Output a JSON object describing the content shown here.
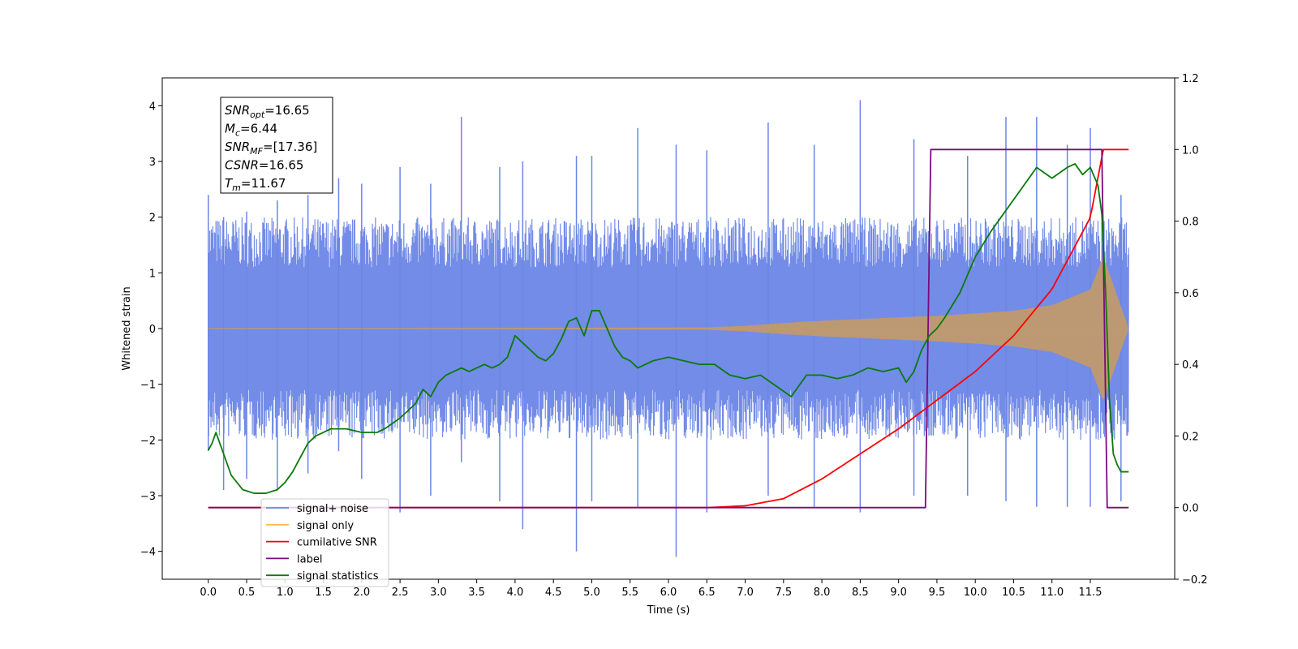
{
  "chart_data": {
    "type": "line",
    "xlabel": "Time (s)",
    "ylabel": "Whitened strain",
    "xlim": [
      -0.6,
      12.6
    ],
    "ylim": [
      -4.5,
      4.5
    ],
    "y2lim": [
      -0.2,
      1.2
    ],
    "x_ticks": [
      0.0,
      0.5,
      1.0,
      1.5,
      2.0,
      2.5,
      3.0,
      3.5,
      4.0,
      4.5,
      5.0,
      5.5,
      6.0,
      6.5,
      7.0,
      7.5,
      8.0,
      8.5,
      9.0,
      9.5,
      10.0,
      10.5,
      11.0,
      11.5
    ],
    "x_tick_labels": [
      "0.0",
      "0.5",
      "1.0",
      "1.5",
      "2.0",
      "2.5",
      "3.0",
      "3.5",
      "4.0",
      "4.5",
      "5.0",
      "5.5",
      "6.0",
      "6.5",
      "7.0",
      "7.5",
      "8.0",
      "8.5",
      "9.0",
      "9.5",
      "10.0",
      "10.5",
      "11.0",
      "11.5"
    ],
    "y_ticks": [
      -4,
      -3,
      -2,
      -1,
      0,
      1,
      2,
      3,
      4
    ],
    "y_tick_labels": [
      "−4",
      "−3",
      "−2",
      "−1",
      "0",
      "1",
      "2",
      "3",
      "4"
    ],
    "y2_ticks": [
      -0.2,
      0.0,
      0.2,
      0.4,
      0.6,
      0.8,
      1.0,
      1.2
    ],
    "y2_tick_labels": [
      "−0.2",
      "0.0",
      "0.2",
      "0.4",
      "0.6",
      "0.8",
      "1.0",
      "1.2"
    ],
    "legend_position": "lower-left",
    "grid": false,
    "colors": {
      "noise": "#6b86e6",
      "signal": "#c09a6b",
      "signal_legend": "#ffbd4d",
      "csnr": "#ff0000",
      "label": "#7b0a80",
      "stats": "#0a7a0a"
    },
    "annotation": [
      {
        "base": "SNR",
        "sub": "opt",
        "value": "=16.65"
      },
      {
        "base": "M",
        "sub": "c",
        "value": "=6.44"
      },
      {
        "base": "SNR",
        "sub": "MF",
        "value": "=[17.36]"
      },
      {
        "base": "CSNR",
        "sub": "",
        "value": "=16.65"
      },
      {
        "base": "T",
        "sub": "m",
        "value": "=11.67"
      }
    ],
    "series": [
      {
        "name": "signal+ noise",
        "axis": "left",
        "style": "noise-band",
        "x": [
          0.0,
          12.0
        ],
        "envelope": 2.0,
        "peaks": [
          [
            0.0,
            2.4,
            -2.2
          ],
          [
            0.2,
            2.0,
            -2.9
          ],
          [
            0.5,
            2.1,
            -2.7
          ],
          [
            0.9,
            2.3,
            -2.9
          ],
          [
            1.3,
            2.4,
            -2.6
          ],
          [
            1.7,
            2.7,
            -2.2
          ],
          [
            2.0,
            2.6,
            -2.7
          ],
          [
            2.5,
            2.9,
            -3.3
          ],
          [
            2.9,
            2.6,
            -3.0
          ],
          [
            3.3,
            3.8,
            -2.4
          ],
          [
            3.8,
            2.9,
            -3.1
          ],
          [
            4.1,
            3.0,
            -3.6
          ],
          [
            4.8,
            3.1,
            -4.0
          ],
          [
            5.0,
            3.1,
            -3.1
          ],
          [
            5.6,
            3.6,
            -3.2
          ],
          [
            6.1,
            3.3,
            -4.1
          ],
          [
            6.5,
            3.2,
            -3.3
          ],
          [
            7.3,
            3.7,
            -3.0
          ],
          [
            7.9,
            3.3,
            -3.2
          ],
          [
            8.5,
            4.1,
            -3.3
          ],
          [
            9.2,
            3.4,
            -3.0
          ],
          [
            9.9,
            3.1,
            -3.0
          ],
          [
            10.4,
            3.8,
            -3.1
          ],
          [
            10.8,
            3.8,
            -3.2
          ],
          [
            11.2,
            3.3,
            -3.2
          ],
          [
            11.5,
            3.6,
            -3.2
          ],
          [
            11.9,
            2.4,
            -3.1
          ]
        ]
      },
      {
        "name": "signal only",
        "axis": "left",
        "style": "chirp",
        "x": [
          0.0,
          6.5,
          7.0,
          7.5,
          8.0,
          8.5,
          9.0,
          9.5,
          10.0,
          10.5,
          11.0,
          11.5,
          11.67,
          12.0
        ],
        "amplitude": [
          0.0,
          0.02,
          0.05,
          0.1,
          0.14,
          0.17,
          0.2,
          0.23,
          0.27,
          0.32,
          0.42,
          0.7,
          1.3,
          0.0
        ]
      },
      {
        "name": "cumilative SNR",
        "axis": "right",
        "x": [
          0.0,
          6.5,
          7.0,
          7.5,
          8.0,
          8.5,
          9.0,
          9.5,
          10.0,
          10.5,
          11.0,
          11.5,
          11.67,
          12.0
        ],
        "values": [
          0.0,
          0.0,
          0.005,
          0.025,
          0.08,
          0.15,
          0.22,
          0.3,
          0.38,
          0.48,
          0.61,
          0.81,
          1.0,
          1.0
        ]
      },
      {
        "name": "label",
        "axis": "right",
        "x": [
          0.0,
          9.35,
          9.42,
          11.65,
          11.72,
          12.0
        ],
        "values": [
          0.0,
          0.0,
          1.0,
          1.0,
          0.0,
          0.0
        ]
      },
      {
        "name": "signal statistics",
        "axis": "right",
        "x": [
          0.0,
          0.05,
          0.1,
          0.2,
          0.3,
          0.45,
          0.6,
          0.75,
          0.9,
          1.0,
          1.1,
          1.2,
          1.3,
          1.4,
          1.5,
          1.6,
          1.8,
          2.0,
          2.2,
          2.3,
          2.5,
          2.7,
          2.8,
          2.9,
          3.0,
          3.1,
          3.2,
          3.3,
          3.4,
          3.5,
          3.6,
          3.7,
          3.8,
          3.9,
          4.0,
          4.1,
          4.2,
          4.3,
          4.4,
          4.5,
          4.6,
          4.7,
          4.8,
          4.9,
          5.0,
          5.1,
          5.2,
          5.3,
          5.4,
          5.5,
          5.6,
          5.8,
          6.0,
          6.2,
          6.4,
          6.6,
          6.8,
          7.0,
          7.2,
          7.4,
          7.6,
          7.8,
          8.0,
          8.2,
          8.4,
          8.6,
          8.8,
          9.0,
          9.1,
          9.2,
          9.3,
          9.4,
          9.5,
          9.6,
          9.8,
          10.0,
          10.2,
          10.4,
          10.6,
          10.8,
          11.0,
          11.2,
          11.3,
          11.4,
          11.5,
          11.6,
          11.65,
          11.7,
          11.75,
          11.8,
          11.85,
          11.9,
          12.0
        ],
        "values": [
          0.16,
          0.18,
          0.21,
          0.15,
          0.09,
          0.05,
          0.04,
          0.04,
          0.05,
          0.07,
          0.1,
          0.14,
          0.18,
          0.2,
          0.21,
          0.22,
          0.22,
          0.21,
          0.21,
          0.22,
          0.25,
          0.29,
          0.33,
          0.31,
          0.35,
          0.37,
          0.38,
          0.39,
          0.38,
          0.39,
          0.4,
          0.39,
          0.4,
          0.42,
          0.48,
          0.46,
          0.44,
          0.42,
          0.41,
          0.43,
          0.47,
          0.52,
          0.53,
          0.48,
          0.55,
          0.55,
          0.5,
          0.45,
          0.42,
          0.41,
          0.39,
          0.41,
          0.42,
          0.41,
          0.4,
          0.4,
          0.37,
          0.36,
          0.37,
          0.34,
          0.31,
          0.37,
          0.37,
          0.36,
          0.37,
          0.39,
          0.38,
          0.39,
          0.35,
          0.38,
          0.44,
          0.48,
          0.5,
          0.53,
          0.6,
          0.7,
          0.77,
          0.83,
          0.89,
          0.95,
          0.92,
          0.95,
          0.96,
          0.93,
          0.95,
          0.9,
          0.82,
          0.6,
          0.3,
          0.15,
          0.12,
          0.1,
          0.1
        ]
      }
    ]
  },
  "legend": [
    {
      "name": "signal+ noise",
      "color": "#6b86e6"
    },
    {
      "name": "signal only",
      "color": "#ffbd4d"
    },
    {
      "name": "cumilative SNR",
      "color": "#ff0000"
    },
    {
      "name": "label",
      "color": "#7b0a80"
    },
    {
      "name": "signal statistics",
      "color": "#0a7a0a"
    }
  ]
}
